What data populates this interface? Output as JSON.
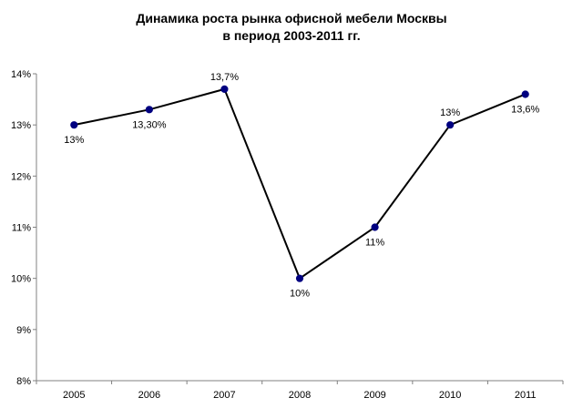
{
  "chart_data": {
    "type": "line",
    "title_lines": [
      "Динамика роста рынка офисной мебели Москвы",
      "в период 2003-2011 гг."
    ],
    "xlabel": "",
    "ylabel": "",
    "categories": [
      "2005",
      "2006",
      "2007",
      "2008",
      "2009",
      "2010",
      "2011"
    ],
    "series": [
      {
        "values": [
          13,
          13.3,
          13.7,
          10,
          11,
          13,
          13.6
        ],
        "data_labels": [
          "13%",
          "13,30%",
          "13,7%",
          "10%",
          "11%",
          "13%",
          "13,6%"
        ],
        "label_position": [
          "below",
          "below",
          "above",
          "below",
          "below",
          "above",
          "below"
        ]
      }
    ],
    "ylim": [
      8,
      14
    ],
    "y_ticks": [
      8,
      9,
      10,
      11,
      12,
      13,
      14
    ],
    "y_tick_labels": [
      "8%",
      "9%",
      "10%",
      "11%",
      "12%",
      "13%",
      "14%"
    ],
    "grid": false,
    "legend": "none",
    "colors": {
      "line": "#000000",
      "marker": "#000080",
      "axis": "#808080"
    }
  }
}
